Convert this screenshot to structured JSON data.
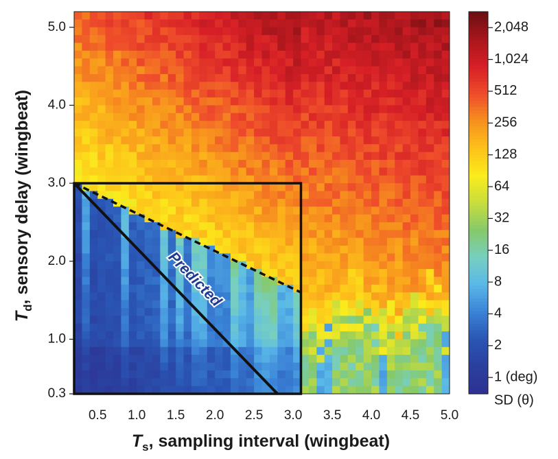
{
  "chart_data": {
    "type": "heatmap",
    "x_axis": {
      "label_var": "T",
      "label_sub": "s",
      "label_rest": ", sampling interval (wingbeat)",
      "ticks": [
        "0.5",
        "1.0",
        "1.5",
        "2.0",
        "2.5",
        "3.0",
        "3.5",
        "4.0",
        "4.5",
        "5.0"
      ],
      "tick_values": [
        0.5,
        1.0,
        1.5,
        2.0,
        2.5,
        3.0,
        3.5,
        4.0,
        4.5,
        5.0
      ],
      "range": [
        0.2,
        5.0
      ]
    },
    "y_axis": {
      "label_var": "T",
      "label_sub": "d",
      "label_rest": ", sensory delay (wingbeat)",
      "ticks": [
        "0.3",
        "1.0",
        "2.0",
        "3.0",
        "4.0",
        "5.0"
      ],
      "tick_values": [
        0.3,
        1.0,
        2.0,
        3.0,
        4.0,
        5.0
      ],
      "range": [
        0.3,
        5.2
      ]
    },
    "colorbar": {
      "scale": "log2",
      "range_deg": [
        0.7,
        2900
      ],
      "ticks": [
        "2,048",
        "1,024",
        "512",
        "256",
        "128",
        "64",
        "32",
        "16",
        "8",
        "4",
        "2",
        "1 (deg)"
      ],
      "tick_values": [
        2048,
        1024,
        512,
        256,
        128,
        64,
        32,
        16,
        8,
        4,
        2,
        1
      ],
      "variable": "SD (θ)",
      "colors": [
        "#2e3192",
        "#2b3f9e",
        "#2a55b4",
        "#3a83d6",
        "#5ab8e8",
        "#77cfc0",
        "#86c96a",
        "#c8dd3c",
        "#fbec1c",
        "#fdc11a",
        "#f7901e",
        "#ee4b2b",
        "#d61f26",
        "#a8161c",
        "#6a0f12"
      ]
    },
    "annotations": {
      "stability_box": {
        "x": [
          0.2,
          3.1
        ],
        "y": [
          0.3,
          3.0
        ]
      },
      "predicted_label": "Predicted",
      "predicted_line": [
        [
          0.2,
          3.0
        ],
        [
          2.8,
          0.3
        ]
      ],
      "dashed_boundary": [
        [
          0.2,
          3.0
        ],
        [
          3.1,
          1.6
        ]
      ]
    },
    "description_of_values": "SD of body angle is low (1–4 deg) below the predicted stability line, rises to 8–64 deg near the boundary, and grows to 128–2,048 deg for large sensory delay and sampling interval."
  }
}
